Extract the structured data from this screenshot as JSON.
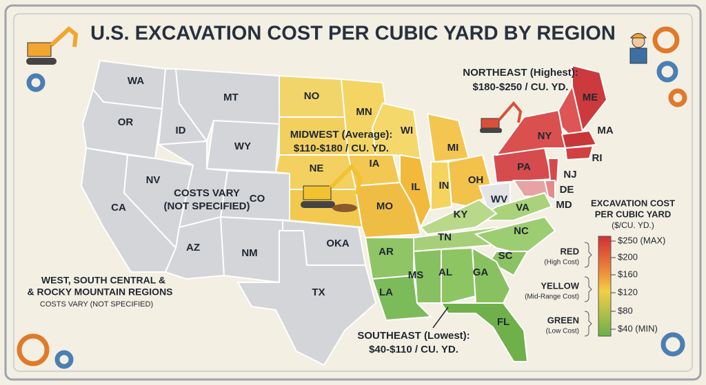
{
  "header": {
    "title": "U.S. EXCAVATION COST PER CUBIC YARD BY REGION"
  },
  "states": [
    "WA",
    "OR",
    "CA",
    "ID",
    "NV",
    "MT",
    "WY",
    "CO",
    "AZ",
    "NM",
    "OKA",
    "TX",
    "NO",
    "NE",
    "MN",
    "IA",
    "MO",
    "WI",
    "IL",
    "MI",
    "IN",
    "OH",
    "PA",
    "NY",
    "ME",
    "MA",
    "RI",
    "NJ",
    "DE",
    "MD",
    "WV",
    "VA",
    "KY",
    "TN",
    "NC",
    "SC",
    "AR",
    "LA",
    "MS",
    "AL",
    "GA",
    "FL"
  ],
  "regions": {
    "northeast": {
      "name": "NORTHEAST (Highest):",
      "range": "$180-$250 / CU. YD."
    },
    "midwest": {
      "name": "MIDWEST (Average):",
      "range": "$110-$180 / CU. YD."
    },
    "southeast": {
      "name": "SOUTHEAST (Lowest):",
      "range": "$40-$110 / CU. YD."
    },
    "center": [
      "COSTS VARY",
      "(NOT SPECIFIED)"
    ],
    "west": [
      "WEST, SOUTH CENTRAL &",
      "& ROCKY MOUNTAIN REGIONS",
      "COSTS VARY (NOT SPECIFIED)"
    ]
  },
  "legend": {
    "title": [
      "EXCAVATION COST",
      "PER CUBIC YARD",
      "($/CU. YD.)"
    ],
    "scale": [
      "$250 (MAX)",
      "$200",
      "$160",
      "$120",
      "$80",
      "$40 (MIN)"
    ],
    "groups": [
      {
        "name": "RED",
        "note": "(High Cost)"
      },
      {
        "name": "YELLOW",
        "note": "(Mid-Range Cost)"
      },
      {
        "name": "GREEN",
        "note": "(Low Cost)"
      }
    ]
  }
}
